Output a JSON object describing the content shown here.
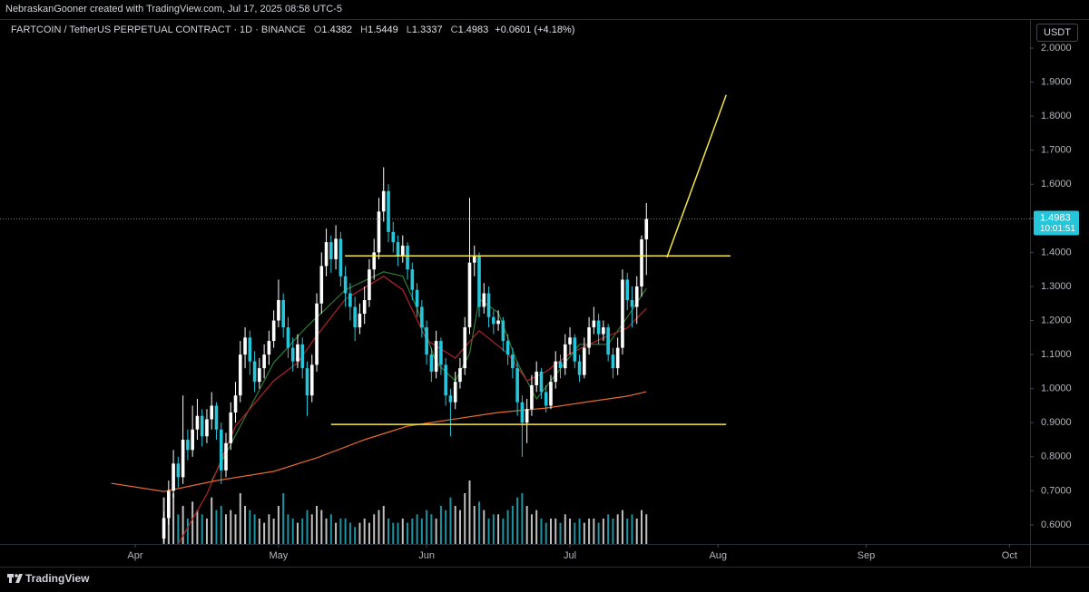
{
  "header": {
    "credit": "NebraskanGooner created with TradingView.com, Jul 17, 2025 08:58 UTC-5"
  },
  "chart_data": {
    "type": "candlestick",
    "title": "FARTCOIN / TetherUS PERPETUAL CONTRACT · 1D · BINANCE",
    "ohlc_legend": [
      {
        "label": "O",
        "value": 1.4382
      },
      {
        "label": "H",
        "value": 1.5449
      },
      {
        "label": "L",
        "value": 1.3337
      },
      {
        "label": "C",
        "value": 1.4983
      }
    ],
    "change": "+0.0601 (+4.18%)",
    "currency": "USDT",
    "up_color": "#ffffff",
    "down_color": "#26c6da",
    "x": [
      6,
      7,
      8,
      9,
      10,
      11,
      12,
      13,
      14,
      15,
      16,
      17,
      18,
      19,
      20,
      21,
      22,
      23,
      24,
      25,
      26,
      27,
      28,
      29,
      30,
      31,
      32,
      33,
      34,
      35,
      36,
      37,
      38,
      39,
      40,
      41,
      42,
      43,
      44,
      45,
      46,
      47,
      48,
      49,
      50,
      51,
      52,
      53,
      54,
      55,
      56,
      57,
      58,
      59,
      60,
      61,
      62,
      63,
      64,
      65,
      66,
      67,
      68,
      69,
      70,
      71,
      72,
      73,
      74,
      75,
      76,
      77,
      78,
      79,
      80,
      81,
      82,
      83,
      84,
      85,
      86,
      87,
      88,
      89,
      90,
      91,
      92,
      93,
      94,
      95,
      96,
      97,
      98,
      99,
      100,
      101,
      102,
      103,
      104,
      105,
      106,
      107
    ],
    "ohlc": [
      [
        0.56,
        0.64,
        0.55,
        0.62
      ],
      [
        0.62,
        0.73,
        0.6,
        0.7
      ],
      [
        0.7,
        0.82,
        0.68,
        0.78
      ],
      [
        0.78,
        0.8,
        0.71,
        0.74
      ],
      [
        0.74,
        0.98,
        0.72,
        0.85
      ],
      [
        0.85,
        0.88,
        0.79,
        0.82
      ],
      [
        0.82,
        0.95,
        0.8,
        0.88
      ],
      [
        0.88,
        0.97,
        0.85,
        0.92
      ],
      [
        0.92,
        0.94,
        0.83,
        0.86
      ],
      [
        0.86,
        0.94,
        0.84,
        0.91
      ],
      [
        0.91,
        0.99,
        0.88,
        0.95
      ],
      [
        0.95,
        0.96,
        0.85,
        0.88
      ],
      [
        0.88,
        0.9,
        0.72,
        0.76
      ],
      [
        0.76,
        0.87,
        0.74,
        0.84
      ],
      [
        0.84,
        0.96,
        0.82,
        0.93
      ],
      [
        0.93,
        1.02,
        0.9,
        0.98
      ],
      [
        0.98,
        1.14,
        0.96,
        1.1
      ],
      [
        1.1,
        1.18,
        1.06,
        1.15
      ],
      [
        1.15,
        1.17,
        1.04,
        1.08
      ],
      [
        1.08,
        1.11,
        0.99,
        1.02
      ],
      [
        1.02,
        1.09,
        1.0,
        1.06
      ],
      [
        1.06,
        1.13,
        1.03,
        1.1
      ],
      [
        1.1,
        1.17,
        1.07,
        1.14
      ],
      [
        1.14,
        1.23,
        1.12,
        1.2
      ],
      [
        1.2,
        1.32,
        1.18,
        1.26
      ],
      [
        1.26,
        1.28,
        1.15,
        1.18
      ],
      [
        1.18,
        1.21,
        1.09,
        1.12
      ],
      [
        1.12,
        1.15,
        1.05,
        1.08
      ],
      [
        1.08,
        1.16,
        1.06,
        1.13
      ],
      [
        1.13,
        1.15,
        1.03,
        1.06
      ],
      [
        1.06,
        1.08,
        0.92,
        0.98
      ],
      [
        0.98,
        1.1,
        0.96,
        1.07
      ],
      [
        1.07,
        1.28,
        1.05,
        1.25
      ],
      [
        1.25,
        1.4,
        1.22,
        1.36
      ],
      [
        1.36,
        1.47,
        1.33,
        1.43
      ],
      [
        1.43,
        1.45,
        1.34,
        1.38
      ],
      [
        1.38,
        1.48,
        1.35,
        1.44
      ],
      [
        1.44,
        1.46,
        1.3,
        1.33
      ],
      [
        1.33,
        1.36,
        1.24,
        1.28
      ],
      [
        1.28,
        1.31,
        1.2,
        1.24
      ],
      [
        1.24,
        1.27,
        1.14,
        1.18
      ],
      [
        1.18,
        1.25,
        1.16,
        1.22
      ],
      [
        1.22,
        1.3,
        1.19,
        1.26
      ],
      [
        1.26,
        1.38,
        1.24,
        1.35
      ],
      [
        1.35,
        1.44,
        1.32,
        1.4
      ],
      [
        1.4,
        1.56,
        1.38,
        1.52
      ],
      [
        1.52,
        1.65,
        1.49,
        1.58
      ],
      [
        1.58,
        1.6,
        1.43,
        1.46
      ],
      [
        1.46,
        1.49,
        1.4,
        1.43
      ],
      [
        1.43,
        1.45,
        1.36,
        1.39
      ],
      [
        1.39,
        1.45,
        1.37,
        1.42
      ],
      [
        1.42,
        1.43,
        1.32,
        1.35
      ],
      [
        1.35,
        1.37,
        1.26,
        1.29
      ],
      [
        1.29,
        1.31,
        1.21,
        1.24
      ],
      [
        1.24,
        1.26,
        1.15,
        1.18
      ],
      [
        1.18,
        1.2,
        1.07,
        1.1
      ],
      [
        1.1,
        1.12,
        1.02,
        1.05
      ],
      [
        1.05,
        1.17,
        1.03,
        1.14
      ],
      [
        1.14,
        1.15,
        1.04,
        1.07
      ],
      [
        1.07,
        1.09,
        0.95,
        0.98
      ],
      [
        0.98,
        1.0,
        0.86,
        0.96
      ],
      [
        0.96,
        1.05,
        0.94,
        1.02
      ],
      [
        1.02,
        1.09,
        1.0,
        1.06
      ],
      [
        1.06,
        1.21,
        1.04,
        1.18
      ],
      [
        1.18,
        1.56,
        1.16,
        1.37
      ],
      [
        1.37,
        1.42,
        1.33,
        1.39
      ],
      [
        1.39,
        1.4,
        1.21,
        1.24
      ],
      [
        1.24,
        1.31,
        1.22,
        1.28
      ],
      [
        1.28,
        1.3,
        1.18,
        1.21
      ],
      [
        1.21,
        1.23,
        1.16,
        1.19
      ],
      [
        1.19,
        1.23,
        1.17,
        1.2
      ],
      [
        1.2,
        1.21,
        1.11,
        1.14
      ],
      [
        1.14,
        1.16,
        1.07,
        1.1
      ],
      [
        1.1,
        1.12,
        1.03,
        1.06
      ],
      [
        1.06,
        1.08,
        0.92,
        0.96
      ],
      [
        0.96,
        0.98,
        0.8,
        0.9
      ],
      [
        0.9,
        0.97,
        0.84,
        0.94
      ],
      [
        0.94,
        1.04,
        0.92,
        1.01
      ],
      [
        1.01,
        1.08,
        0.99,
        1.05
      ],
      [
        1.05,
        1.06,
        0.97,
        0.99
      ],
      [
        0.99,
        1.01,
        0.93,
        0.95
      ],
      [
        0.95,
        1.04,
        0.94,
        1.02
      ],
      [
        1.02,
        1.11,
        1.0,
        1.08
      ],
      [
        1.08,
        1.1,
        1.03,
        1.06
      ],
      [
        1.06,
        1.16,
        1.04,
        1.13
      ],
      [
        1.13,
        1.18,
        1.1,
        1.15
      ],
      [
        1.15,
        1.16,
        1.06,
        1.08
      ],
      [
        1.08,
        1.1,
        1.02,
        1.04
      ],
      [
        1.04,
        1.15,
        1.03,
        1.12
      ],
      [
        1.12,
        1.21,
        1.1,
        1.18
      ],
      [
        1.18,
        1.24,
        1.16,
        1.2
      ],
      [
        1.2,
        1.22,
        1.13,
        1.16
      ],
      [
        1.16,
        1.2,
        1.14,
        1.18
      ],
      [
        1.18,
        1.19,
        1.08,
        1.1
      ],
      [
        1.1,
        1.12,
        1.03,
        1.06
      ],
      [
        1.06,
        1.15,
        1.04,
        1.12
      ],
      [
        1.12,
        1.35,
        1.1,
        1.32
      ],
      [
        1.32,
        1.34,
        1.23,
        1.26
      ],
      [
        1.26,
        1.3,
        1.18,
        1.24
      ],
      [
        1.24,
        1.33,
        1.19,
        1.3
      ],
      [
        1.3,
        1.45,
        1.27,
        1.4382
      ],
      [
        1.4382,
        1.5449,
        1.3337,
        1.4983
      ]
    ],
    "volume": [
      55,
      40,
      60,
      35,
      45,
      30,
      50,
      40,
      35,
      30,
      55,
      40,
      45,
      35,
      40,
      35,
      60,
      45,
      40,
      35,
      30,
      25,
      35,
      30,
      45,
      60,
      35,
      30,
      25,
      30,
      40,
      35,
      45,
      40,
      30,
      35,
      25,
      30,
      30,
      25,
      20,
      25,
      30,
      25,
      35,
      40,
      45,
      30,
      25,
      25,
      30,
      25,
      30,
      35,
      30,
      40,
      35,
      30,
      45,
      40,
      55,
      45,
      40,
      60,
      75,
      45,
      50,
      40,
      30,
      35,
      35,
      30,
      40,
      45,
      55,
      60,
      45,
      35,
      40,
      30,
      25,
      30,
      30,
      25,
      35,
      30,
      25,
      30,
      25,
      30,
      30,
      25,
      30,
      35,
      30,
      35,
      40,
      30,
      35,
      30,
      40,
      35
    ],
    "moving_averages": [
      {
        "color": "#2e7d32",
        "x": [
          16,
          22,
          29,
          36,
          40,
          44,
          52,
          56,
          59,
          63,
          67,
          70,
          72,
          76,
          80,
          84,
          87,
          93,
          99,
          103,
          107
        ],
        "values": [
          0.73,
          0.89,
          1.076,
          1.183,
          1.236,
          1.29,
          1.343,
          1.33,
          1.236,
          1.076,
          1.023,
          1.103,
          1.263,
          1.223,
          1.076,
          0.97,
          1.023,
          1.13,
          1.13,
          1.21,
          1.295
        ]
      },
      {
        "color": "#b2222a",
        "x": [
          9,
          15,
          21,
          29,
          34,
          38,
          44,
          52,
          56,
          61,
          67,
          72,
          78,
          82,
          86,
          91,
          97,
          103,
          107
        ],
        "values": [
          0.544,
          0.69,
          0.89,
          1.023,
          1.076,
          1.156,
          1.263,
          1.33,
          1.29,
          1.143,
          1.09,
          1.17,
          1.103,
          1.023,
          1.05,
          1.103,
          1.143,
          1.178,
          1.236
        ]
      },
      {
        "color": "#e46a2e",
        "x": [
          -5,
          6,
          17,
          29,
          38,
          48,
          57,
          67,
          76,
          86,
          95,
          103,
          107
        ],
        "values": [
          0.722,
          0.698,
          0.73,
          0.757,
          0.797,
          0.85,
          0.89,
          0.911,
          0.93,
          0.943,
          0.962,
          0.978,
          0.991
        ]
      }
    ],
    "drawings": [
      {
        "color": "#f5e642",
        "x": [
          43.9,
          124.6
        ],
        "values": [
          1.39,
          1.39
        ]
      },
      {
        "color": "#f5e642",
        "x": [
          41,
          123.7
        ],
        "values": [
          0.895,
          0.895
        ]
      },
      {
        "color": "#f5e642",
        "x": [
          111.3,
          123.7
        ],
        "values": [
          1.385,
          1.862
        ]
      }
    ],
    "last_price": {
      "value": 1.4983,
      "countdown": "10:01:51",
      "color": "#26c6da"
    },
    "xlim": [
      -28.3,
      187.3
    ],
    "ylim": [
      0.544,
      2.0825
    ],
    "xticks": [
      {
        "value": 0,
        "label": "Apr"
      },
      {
        "value": 30,
        "label": "May"
      },
      {
        "value": 61,
        "label": "Jun"
      },
      {
        "value": 91,
        "label": "Jul"
      },
      {
        "value": 122,
        "label": "Aug"
      },
      {
        "value": 153,
        "label": "Sep"
      },
      {
        "value": 183,
        "label": "Oct"
      }
    ],
    "yticks": [
      {
        "value": 0.6,
        "label": "0.6000"
      },
      {
        "value": 0.7,
        "label": "0.7000"
      },
      {
        "value": 0.8,
        "label": "0.8000"
      },
      {
        "value": 0.9,
        "label": "0.9000"
      },
      {
        "value": 1.0,
        "label": "1.0000"
      },
      {
        "value": 1.1,
        "label": "1.1000"
      },
      {
        "value": 1.2,
        "label": "1.2000"
      },
      {
        "value": 1.3,
        "label": "1.3000"
      },
      {
        "value": 1.4,
        "label": "1.4000"
      },
      {
        "value": 1.5,
        "label": "1.5000"
      },
      {
        "value": 1.6,
        "label": "1.6000"
      },
      {
        "value": 1.7,
        "label": "1.7000"
      },
      {
        "value": 1.8,
        "label": "1.8000"
      },
      {
        "value": 1.9,
        "label": "1.9000"
      },
      {
        "value": 2.0,
        "label": "2.0000"
      }
    ]
  },
  "footer": {
    "brand": "TradingView"
  }
}
